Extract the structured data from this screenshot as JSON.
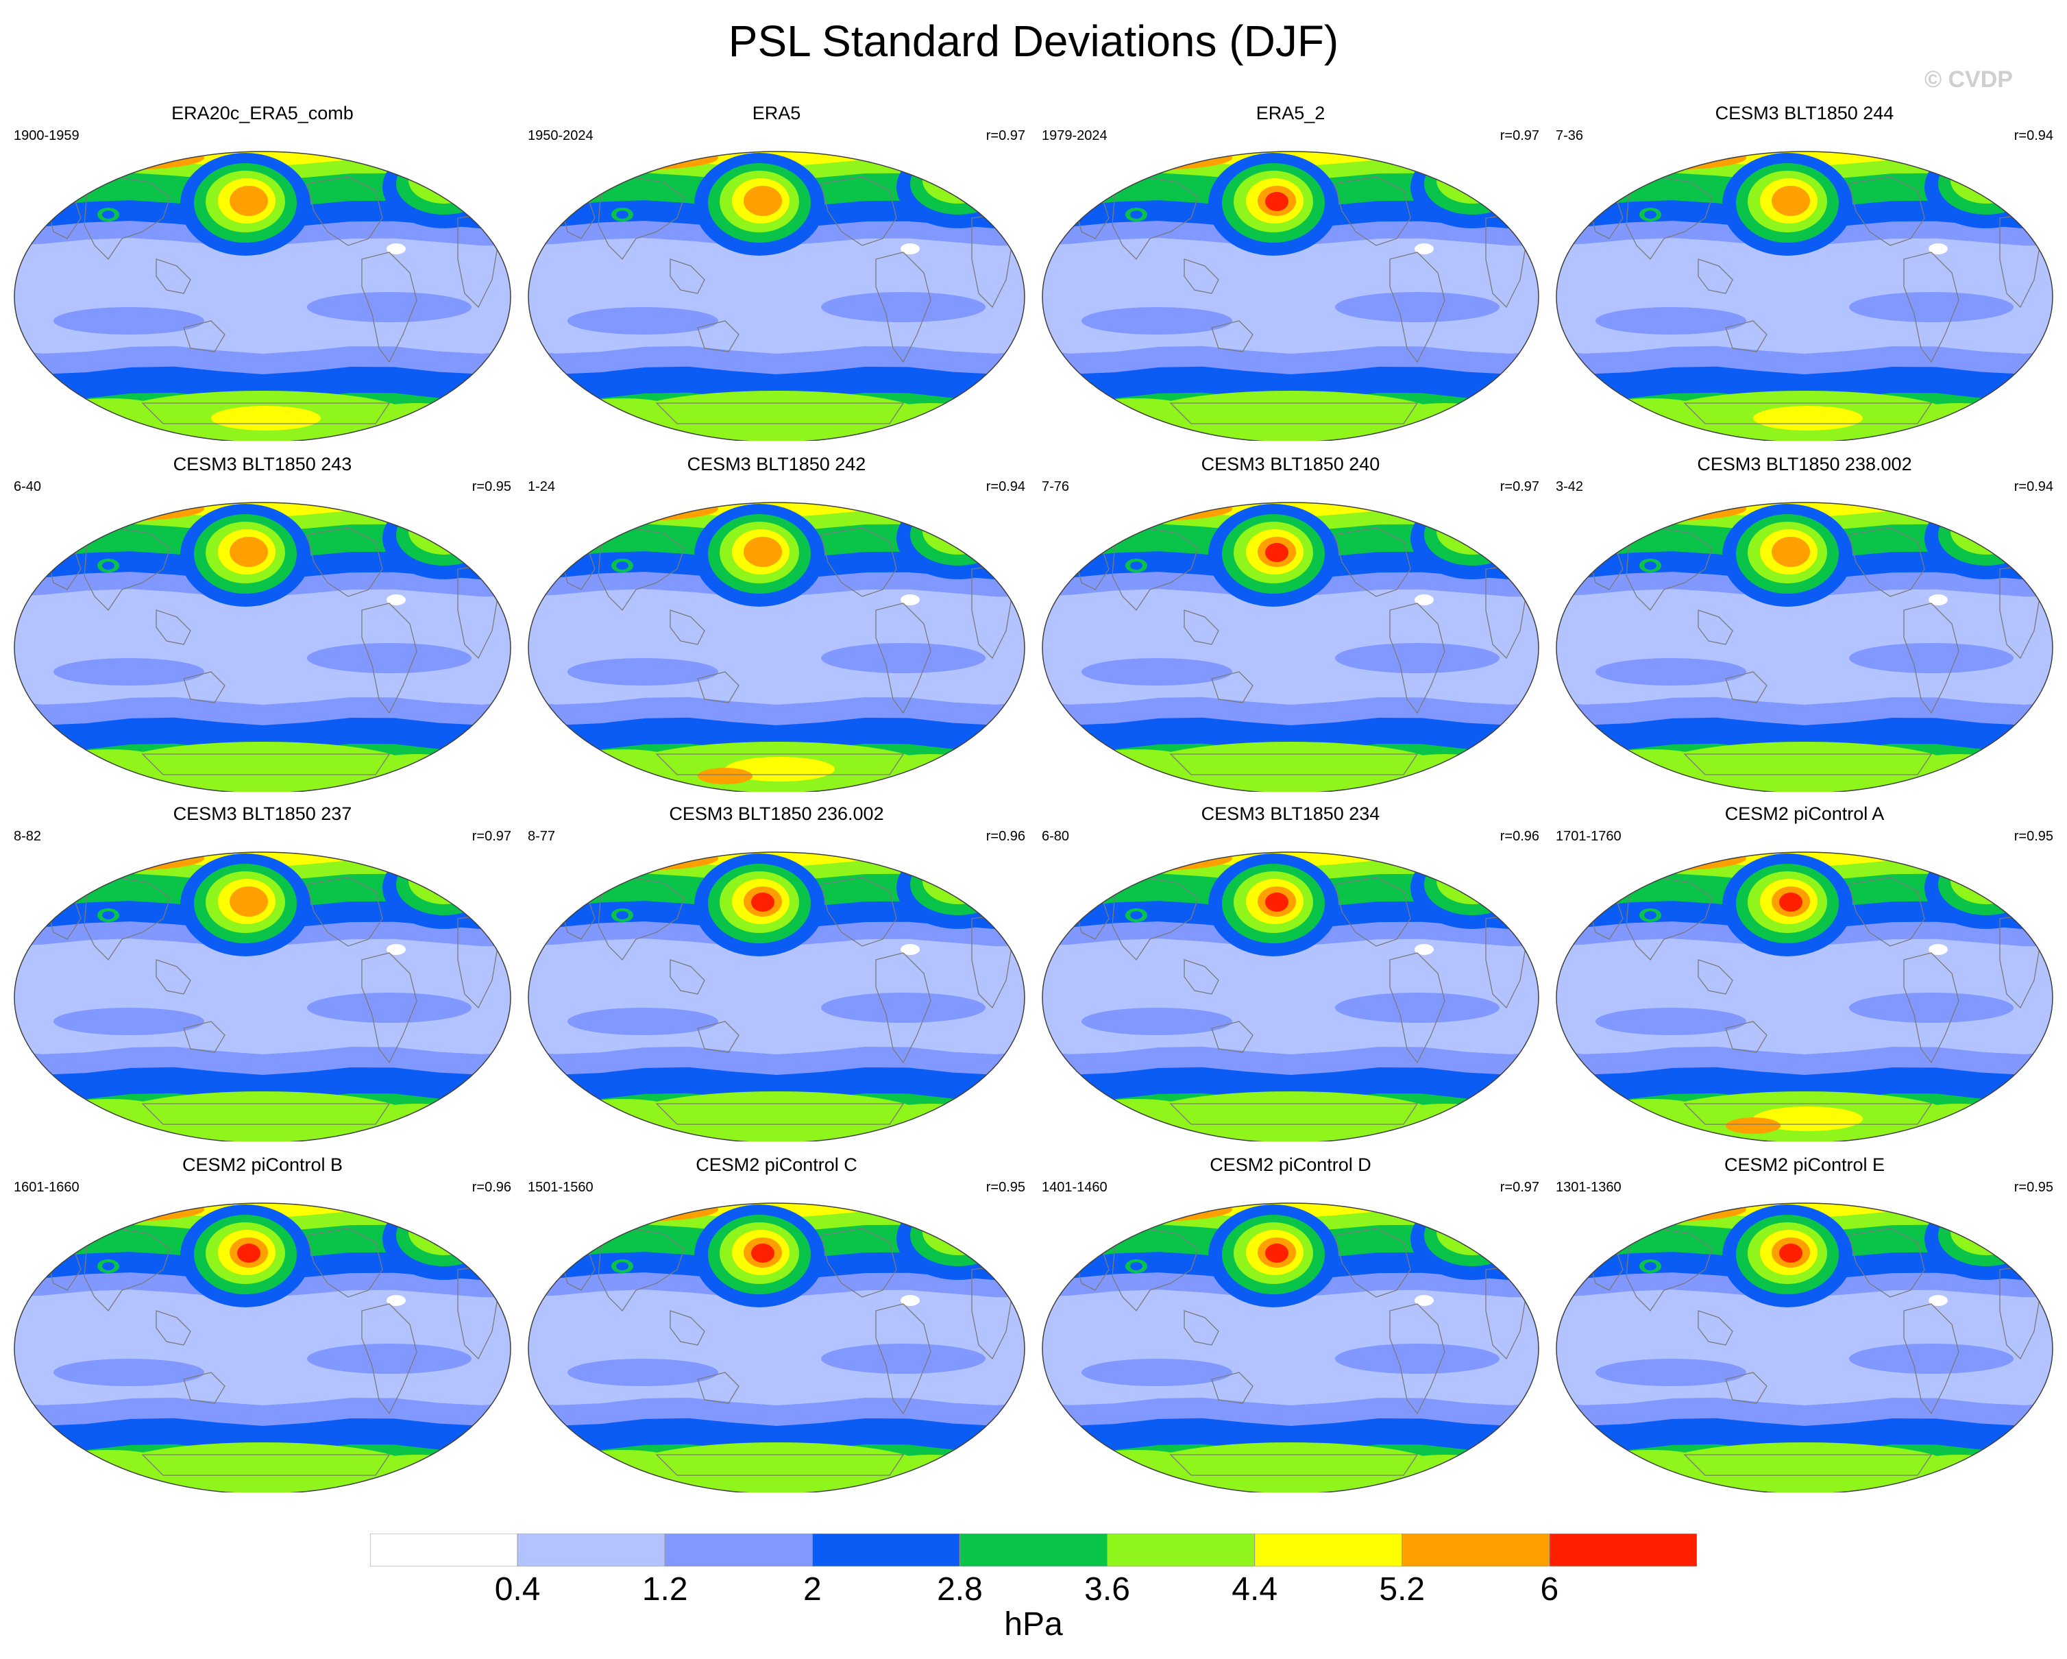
{
  "title": "PSL Standard Deviations (DJF)",
  "watermark": "© CVDP",
  "units": "hPa",
  "colorbar": {
    "labels": [
      "0.4",
      "1.2",
      "2",
      "2.8",
      "3.6",
      "4.4",
      "5.2",
      "6"
    ],
    "colors": [
      "#ffffff",
      "#b3c3ff",
      "#8098ff",
      "#0a5cf5",
      "#0ac44a",
      "#8ff51a",
      "#ffff00",
      "#ffa000",
      "#ff2000"
    ]
  },
  "map_style": {
    "coastline_color": "#7a7a7a",
    "outline_color": "#404040"
  },
  "panels": [
    {
      "title": "ERA20c_ERA5_comb",
      "years": "1900-1959",
      "corr": "",
      "nh_max": 7,
      "sh_max": 6
    },
    {
      "title": "ERA5",
      "years": "1950-2024",
      "corr": "r=0.97",
      "nh_max": 7,
      "sh_max": 5
    },
    {
      "title": "ERA5_2",
      "years": "1979-2024",
      "corr": "r=0.97",
      "nh_max": 8,
      "sh_max": 5
    },
    {
      "title": "CESM3 BLT1850 244",
      "years": "7-36",
      "corr": "r=0.94",
      "nh_max": 7,
      "sh_max": 6
    },
    {
      "title": "CESM3 BLT1850 243",
      "years": "6-40",
      "corr": "r=0.95",
      "nh_max": 7,
      "sh_max": 5
    },
    {
      "title": "CESM3 BLT1850 242",
      "years": "1-24",
      "corr": "r=0.94",
      "nh_max": 7,
      "sh_max": 7
    },
    {
      "title": "CESM3 BLT1850 240",
      "years": "7-76",
      "corr": "r=0.97",
      "nh_max": 8,
      "sh_max": 5
    },
    {
      "title": "CESM3 BLT1850 238.002",
      "years": "3-42",
      "corr": "r=0.94",
      "nh_max": 7,
      "sh_max": 5
    },
    {
      "title": "CESM3 BLT1850 237",
      "years": "8-82",
      "corr": "r=0.97",
      "nh_max": 7,
      "sh_max": 5
    },
    {
      "title": "CESM3 BLT1850 236.002",
      "years": "8-77",
      "corr": "r=0.96",
      "nh_max": 8,
      "sh_max": 5
    },
    {
      "title": "CESM3 BLT1850 234",
      "years": "6-80",
      "corr": "r=0.96",
      "nh_max": 8,
      "sh_max": 5
    },
    {
      "title": "CESM2 piControl A",
      "years": "1701-1760",
      "corr": "r=0.95",
      "nh_max": 8,
      "sh_max": 7
    },
    {
      "title": "CESM2 piControl B",
      "years": "1601-1660",
      "corr": "r=0.96",
      "nh_max": 8,
      "sh_max": 5
    },
    {
      "title": "CESM2 piControl C",
      "years": "1501-1560",
      "corr": "r=0.95",
      "nh_max": 8,
      "sh_max": 5
    },
    {
      "title": "CESM2 piControl D",
      "years": "1401-1460",
      "corr": "r=0.97",
      "nh_max": 8,
      "sh_max": 5
    },
    {
      "title": "CESM2 piControl E",
      "years": "1301-1360",
      "corr": "r=0.95",
      "nh_max": 8,
      "sh_max": 5
    }
  ]
}
